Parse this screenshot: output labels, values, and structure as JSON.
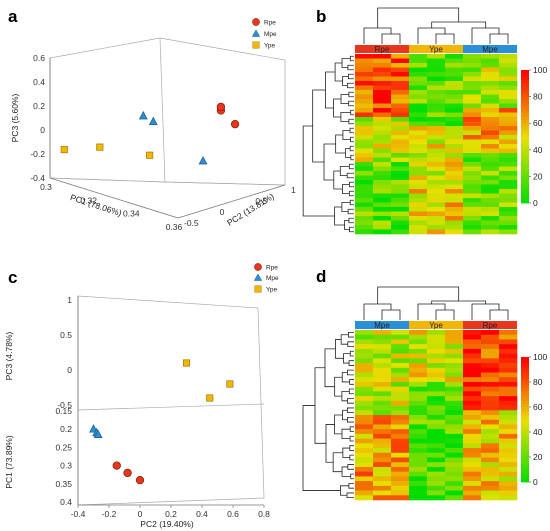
{
  "colors": {
    "Rpe": "#e8351e",
    "Mpe": "#2a8fd4",
    "Ype": "#f2b705",
    "heat_low": "#00dd00",
    "heat_mid": "#e8e000",
    "heat_high": "#ff0000"
  },
  "panels": {
    "a": "a",
    "b": "b",
    "c": "c",
    "d": "d"
  },
  "chart_data": [
    {
      "panel": "a",
      "type": "scatter",
      "projection": "3d",
      "legend": [
        "Rpe",
        "Mpe",
        "Ype"
      ],
      "legend_position": "top-right",
      "xlabel": "PC1 (78.06%)",
      "ylabel": "PC2 (13.81%)",
      "zlabel": "PC3 (5.60%)",
      "x_ticks": [
        "0.3",
        "0.32",
        "0.34",
        "0.36"
      ],
      "y_ticks": [
        "-0.5",
        "0",
        "0.5",
        "1"
      ],
      "z_ticks": [
        "-0.4",
        "-0.2",
        "0",
        "0.2",
        "0.4",
        "0.6"
      ],
      "xlim": [
        0.3,
        0.36
      ],
      "ylim": [
        -0.5,
        1.0
      ],
      "zlim": [
        -0.4,
        0.6
      ],
      "series": [
        {
          "name": "Rpe",
          "marker": "circle",
          "points": [
            [
              0.345,
              0.55,
              0.22
            ],
            [
              0.345,
              0.55,
              0.25
            ],
            [
              0.355,
              0.45,
              0.18
            ]
          ]
        },
        {
          "name": "Mpe",
          "marker": "triangle",
          "points": [
            [
              0.322,
              0.15,
              0.12
            ],
            [
              0.325,
              0.2,
              0.08
            ],
            [
              0.35,
              0.15,
              -0.1
            ]
          ]
        },
        {
          "name": "Ype",
          "marker": "square",
          "points": [
            [
              0.3,
              -0.3,
              -0.2
            ],
            [
              0.32,
              -0.4,
              -0.05
            ],
            [
              0.335,
              -0.15,
              -0.08
            ]
          ]
        }
      ]
    },
    {
      "panel": "b",
      "type": "heatmap",
      "column_groups": [
        "Rpe",
        "Ype",
        "Mpe"
      ],
      "colorbar_ticks": [
        "100",
        "80",
        "60",
        "40",
        "20",
        "0"
      ],
      "colorbar_range": [
        0,
        100
      ],
      "rows": 40,
      "cols_per_group": 3
    },
    {
      "panel": "c",
      "type": "scatter",
      "projection": "3d",
      "legend": [
        "Rpe",
        "Mpe",
        "Ype"
      ],
      "legend_position": "top-right",
      "xlabel": "PC2 (19.40%)",
      "ylabel": "PC1 (73.89%)",
      "zlabel": "PC3 (4.78%)",
      "x_ticks": [
        "-0.4",
        "-0.2",
        "0",
        "0.2",
        "0.4",
        "0.6",
        "0.8"
      ],
      "y_ticks": [
        "0.15",
        "0.2",
        "0.25",
        "0.3",
        "0.35",
        "0.4"
      ],
      "z_ticks": [
        "1",
        "0.5",
        "0",
        "-0.5"
      ],
      "xlim": [
        -0.4,
        0.8
      ],
      "ylim": [
        0.15,
        0.4
      ],
      "zlim": [
        -0.5,
        1.0
      ],
      "series": [
        {
          "name": "Rpe",
          "marker": "circle",
          "points": [
            [
              -0.15,
              0.3,
              -0.7
            ],
            [
              -0.08,
              0.32,
              -0.72
            ],
            [
              0.0,
              0.34,
              -0.74
            ]
          ]
        },
        {
          "name": "Mpe",
          "marker": "triangle",
          "points": [
            [
              -0.3,
              0.2,
              -0.55
            ],
            [
              -0.28,
              0.21,
              -0.56
            ],
            [
              -0.27,
              0.215,
              -0.56
            ]
          ]
        },
        {
          "name": "Ype",
          "marker": "square",
          "points": [
            [
              0.3,
              0.2,
              0.1
            ],
            [
              0.58,
              0.22,
              -0.2
            ],
            [
              0.45,
              0.2,
              -0.4
            ]
          ]
        }
      ]
    },
    {
      "panel": "d",
      "type": "heatmap",
      "column_groups": [
        "Mpe",
        "Ype",
        "Rpe"
      ],
      "colorbar_ticks": [
        "100",
        "80",
        "60",
        "40",
        "20",
        "0"
      ],
      "colorbar_range": [
        0,
        100
      ],
      "rows": 36,
      "cols_per_group": 3
    }
  ]
}
